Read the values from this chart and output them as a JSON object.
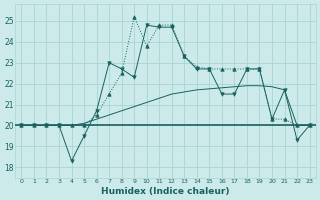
{
  "xlabel": "Humidex (Indice chaleur)",
  "bg_color": "#cceaea",
  "grid_color": "#aad4d4",
  "line_color": "#1a6060",
  "x_ticks": [
    0,
    1,
    2,
    3,
    4,
    5,
    6,
    7,
    8,
    9,
    10,
    11,
    12,
    13,
    14,
    15,
    16,
    17,
    18,
    19,
    20,
    21,
    22,
    23
  ],
  "y_ticks": [
    18,
    19,
    20,
    21,
    22,
    23,
    24,
    25
  ],
  "ylim": [
    17.5,
    25.8
  ],
  "xlim": [
    -0.5,
    23.5
  ],
  "dotted_line": {
    "x": [
      0,
      1,
      2,
      3,
      4,
      5,
      6,
      7,
      8,
      9,
      10,
      11,
      12,
      13,
      14,
      15,
      16,
      17,
      18,
      19,
      20,
      21,
      22,
      23
    ],
    "y": [
      20,
      20,
      20,
      20,
      20,
      20,
      20.5,
      21.5,
      22.5,
      25.2,
      23.8,
      24.8,
      24.8,
      23.3,
      22.8,
      22.7,
      22.7,
      22.7,
      22.7,
      22.7,
      20.3,
      20.3,
      20.0,
      20.0
    ]
  },
  "solid_line": {
    "x": [
      0,
      1,
      2,
      3,
      4,
      5,
      6,
      7,
      8,
      9,
      10,
      11,
      12,
      13,
      14,
      15,
      16,
      17,
      18,
      19,
      20,
      21,
      22,
      23
    ],
    "y": [
      20,
      20,
      20,
      20,
      18.3,
      19.5,
      20.7,
      23.0,
      22.7,
      22.3,
      24.8,
      24.7,
      24.7,
      23.3,
      22.7,
      22.7,
      21.5,
      21.5,
      22.7,
      22.7,
      20.3,
      21.7,
      19.3,
      20.0
    ]
  },
  "hline_y": 20,
  "trend_line": {
    "x": [
      0,
      1,
      2,
      3,
      4,
      5,
      6,
      7,
      8,
      9,
      10,
      11,
      12,
      13,
      14,
      15,
      16,
      17,
      18,
      19,
      20,
      21,
      22,
      23
    ],
    "y": [
      20,
      20,
      20,
      20,
      20,
      20.1,
      20.3,
      20.5,
      20.7,
      20.9,
      21.1,
      21.3,
      21.5,
      21.6,
      21.7,
      21.75,
      21.8,
      21.85,
      21.9,
      21.9,
      21.85,
      21.7,
      20.0,
      20.0
    ]
  }
}
